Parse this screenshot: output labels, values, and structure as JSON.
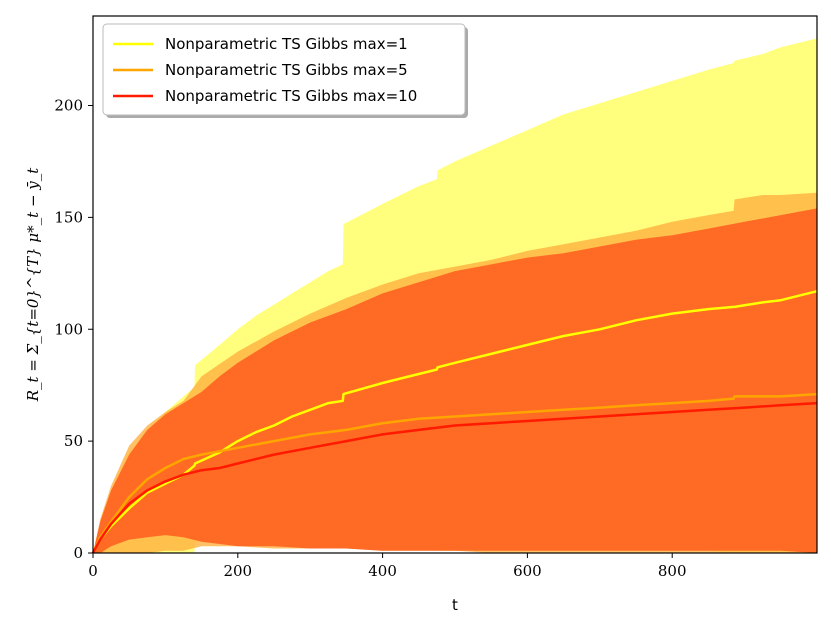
{
  "chart_data": {
    "type": "line",
    "xlabel": "t",
    "ylabel": "R_t = Σ_{t=0}^{T} μ*_t − ȳ_t",
    "xlim": [
      0,
      1000
    ],
    "ylim": [
      0,
      240
    ],
    "xticks": [
      0,
      200,
      400,
      600,
      800
    ],
    "yticks": [
      0,
      50,
      100,
      150,
      200
    ],
    "grid": false,
    "legend_position": "top-left",
    "series": [
      {
        "name": "Nonparametric TS Gibbs max=1",
        "color": "#ffff00",
        "band_color": "#ffff66",
        "band_opacity": 0.85,
        "x": [
          0,
          10,
          25,
          50,
          75,
          100,
          125,
          140,
          141,
          175,
          200,
          225,
          250,
          275,
          300,
          325,
          345,
          346,
          400,
          450,
          475,
          476,
          500,
          550,
          600,
          650,
          700,
          750,
          800,
          850,
          885,
          886,
          925,
          950,
          1000
        ],
        "mean": [
          0,
          6,
          12,
          20,
          27,
          31,
          35,
          39,
          40,
          45,
          50,
          54,
          57,
          61,
          64,
          67,
          68,
          71,
          76,
          80,
          82,
          83,
          85,
          89,
          93,
          97,
          100,
          104,
          107,
          109,
          110,
          110,
          112,
          113,
          117
        ],
        "upper": [
          0,
          12,
          28,
          45,
          55,
          63,
          70,
          74,
          84,
          93,
          100,
          106,
          111,
          116,
          121,
          126,
          129,
          147,
          156,
          164,
          167,
          171,
          175,
          182,
          189,
          196,
          201,
          206,
          211,
          216,
          219,
          220,
          223,
          226,
          230
        ],
        "lower": [
          0,
          0,
          0,
          0,
          0,
          0,
          0,
          0,
          5,
          5,
          4,
          4,
          3,
          3,
          3,
          3,
          3,
          2,
          2,
          2,
          2,
          1,
          1,
          1,
          1,
          1,
          1,
          1,
          1,
          1,
          0,
          0,
          0,
          0,
          0
        ]
      },
      {
        "name": "Nonparametric TS Gibbs max=5",
        "color": "#ffa500",
        "band_color": "#ffb040",
        "band_opacity": 0.8,
        "x": [
          0,
          10,
          25,
          50,
          75,
          100,
          125,
          150,
          200,
          250,
          300,
          350,
          400,
          450,
          500,
          550,
          600,
          650,
          700,
          750,
          800,
          850,
          885,
          886,
          925,
          950,
          1000
        ],
        "mean": [
          0,
          7,
          14,
          25,
          33,
          38,
          42,
          44,
          47,
          50,
          53,
          55,
          58,
          60,
          61,
          62,
          63,
          64,
          65,
          66,
          67,
          68,
          69,
          70,
          70,
          70,
          71
        ],
        "upper": [
          0,
          15,
          30,
          48,
          57,
          63,
          68,
          79,
          90,
          99,
          107,
          114,
          120,
          125,
          128,
          131,
          135,
          138,
          141,
          144,
          148,
          151,
          153,
          158,
          160,
          160,
          161
        ],
        "lower": [
          0,
          0,
          0,
          0,
          0,
          1,
          1,
          3,
          3,
          2,
          2,
          2,
          1,
          1,
          1,
          0,
          0,
          0,
          0,
          0,
          0,
          0,
          0,
          0,
          0,
          0,
          0
        ]
      },
      {
        "name": "Nonparametric TS Gibbs max=10",
        "color": "#ff1a00",
        "band_color": "#ff6020",
        "band_opacity": 0.9,
        "x": [
          0,
          10,
          25,
          50,
          75,
          100,
          125,
          150,
          175,
          200,
          250,
          300,
          350,
          400,
          450,
          500,
          550,
          600,
          650,
          700,
          750,
          800,
          850,
          900,
          950,
          1000
        ],
        "mean": [
          0,
          6,
          13,
          22,
          28,
          32,
          35,
          37,
          38,
          40,
          44,
          47,
          50,
          53,
          55,
          57,
          58,
          59,
          60,
          61,
          62,
          63,
          64,
          65,
          66,
          67
        ],
        "upper": [
          0,
          14,
          28,
          44,
          55,
          62,
          67,
          72,
          79,
          85,
          95,
          103,
          109,
          116,
          121,
          126,
          129,
          132,
          134,
          137,
          140,
          142,
          145,
          148,
          151,
          154
        ],
        "lower": [
          0,
          0,
          3,
          6,
          7,
          8,
          7,
          5,
          4,
          3,
          3,
          2,
          2,
          1,
          1,
          1,
          1,
          1,
          1,
          1,
          1,
          1,
          1,
          1,
          1,
          0
        ]
      }
    ]
  }
}
